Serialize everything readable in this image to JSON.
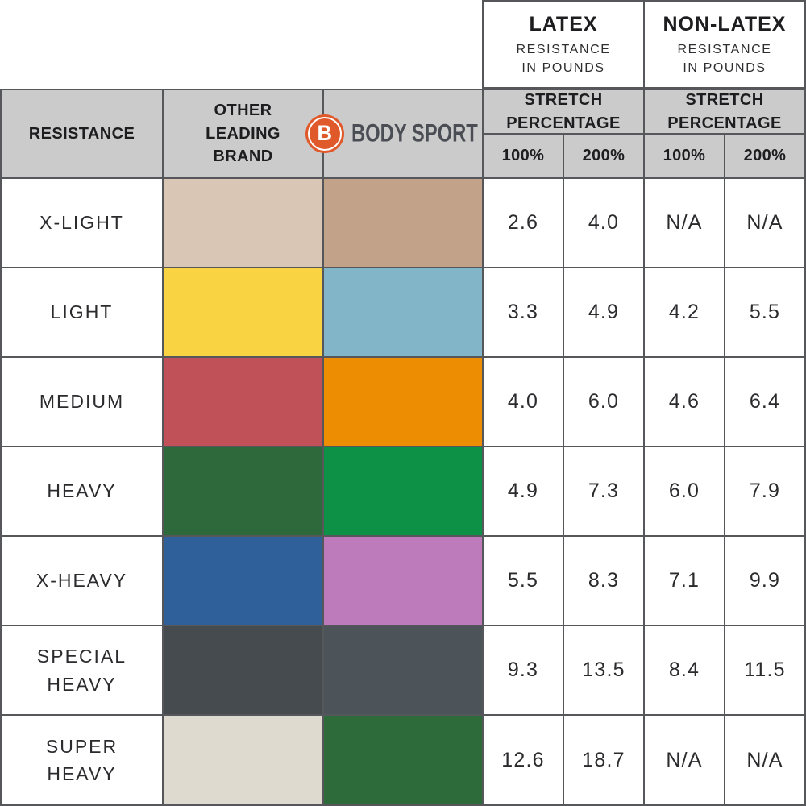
{
  "colors": {
    "grid_line": "#56575b",
    "header_bg": "#cbcbcb",
    "cell_bg": "#ffffff",
    "logo_orange": "#e0592b",
    "logo_text_gray": "#4a4e54",
    "heading_text": "#1d1d1f",
    "value_text": "#2b2b2e"
  },
  "chart_data": {
    "type": "table",
    "top_headers": [
      {
        "title": "LATEX",
        "subtitle_lines": [
          "RESISTANCE",
          "IN POUNDS"
        ]
      },
      {
        "title": "NON-LATEX",
        "subtitle_lines": [
          "RESISTANCE",
          "IN POUNDS"
        ]
      }
    ],
    "header": {
      "resistance_label": "RESISTANCE",
      "other_brand_lines": [
        "OTHER",
        "LEADING",
        "BRAND"
      ],
      "brand_logo": {
        "monogram": "B",
        "name": "BODY SPORT",
        "registered_mark": "®"
      },
      "stretch_lines": [
        "STRETCH",
        "PERCENTAGE"
      ],
      "percent_columns": [
        "100%",
        "200%"
      ]
    },
    "rows": [
      {
        "label": "X-LIGHT",
        "other_color": "#d9c6b4",
        "bodysport_color": "#c2a38a",
        "values": [
          "2.6",
          "4.0",
          "N/A",
          "N/A"
        ]
      },
      {
        "label": "LIGHT",
        "other_color": "#fad342",
        "bodysport_color": "#82b5c8",
        "values": [
          "3.3",
          "4.9",
          "4.2",
          "5.5"
        ]
      },
      {
        "label": "MEDIUM",
        "other_color": "#c15159",
        "bodysport_color": "#ec8d02",
        "values": [
          "4.0",
          "6.0",
          "4.6",
          "6.4"
        ]
      },
      {
        "label": "HEAVY",
        "other_color": "#2e693c",
        "bodysport_color": "#0c9147",
        "values": [
          "4.9",
          "7.3",
          "6.0",
          "7.9"
        ]
      },
      {
        "label": "X-HEAVY",
        "other_color": "#30609a",
        "bodysport_color": "#bd7bbc",
        "values": [
          "5.5",
          "8.3",
          "7.1",
          "9.9"
        ]
      },
      {
        "label": [
          "SPECIAL",
          "HEAVY"
        ],
        "other_color": "#454b4f",
        "bodysport_color": "#4d5459",
        "values": [
          "9.3",
          "13.5",
          "8.4",
          "11.5"
        ]
      },
      {
        "label": [
          "SUPER",
          "HEAVY"
        ],
        "other_color": "#dedacf",
        "bodysport_color": "#2e6b3a",
        "values": [
          "12.6",
          "18.7",
          "N/A",
          "N/A"
        ]
      }
    ]
  }
}
